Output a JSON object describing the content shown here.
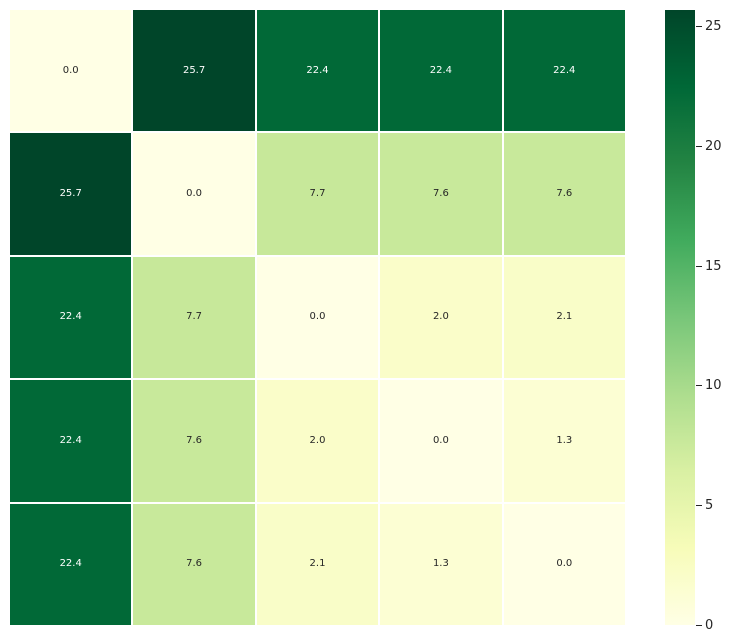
{
  "chart_data": {
    "type": "heatmap",
    "title": "",
    "xlabel": "",
    "ylabel": "",
    "rows": 5,
    "cols": 5,
    "matrix": [
      [
        0.0,
        25.7,
        22.4,
        22.4,
        22.4
      ],
      [
        25.7,
        0.0,
        7.7,
        7.6,
        7.6
      ],
      [
        22.4,
        7.7,
        0.0,
        2.0,
        2.1
      ],
      [
        22.4,
        7.6,
        2.0,
        0.0,
        1.3
      ],
      [
        22.4,
        7.6,
        2.1,
        1.3,
        0.0
      ]
    ],
    "value_format_decimals": 1,
    "vmin": 0,
    "vmax": 25.7,
    "annotations": true,
    "grid_line_color": "#ffffff",
    "colormap": {
      "name": "YlGn",
      "stops": [
        {
          "pos": 0.0,
          "color": "#ffffe5"
        },
        {
          "pos": 0.125,
          "color": "#f7fcb9"
        },
        {
          "pos": 0.25,
          "color": "#d9f0a3"
        },
        {
          "pos": 0.375,
          "color": "#addd8e"
        },
        {
          "pos": 0.5,
          "color": "#78c679"
        },
        {
          "pos": 0.625,
          "color": "#41ab5d"
        },
        {
          "pos": 0.75,
          "color": "#238443"
        },
        {
          "pos": 0.875,
          "color": "#006837"
        },
        {
          "pos": 1.0,
          "color": "#004529"
        }
      ]
    },
    "cell_styles": {
      "0.0": {
        "bg": "#ffffe5",
        "text": "#262626"
      },
      "1.3": {
        "bg": "#fcfed3",
        "text": "#262626"
      },
      "2.0": {
        "bg": "#fafdc9",
        "text": "#262626"
      },
      "2.1": {
        "bg": "#f9fdc8",
        "text": "#262626"
      },
      "7.6": {
        "bg": "#c8e99b",
        "text": "#262626"
      },
      "7.7": {
        "bg": "#c7e89a",
        "text": "#262626"
      },
      "22.4": {
        "bg": "#016937",
        "text": "#ffffff"
      },
      "25.7": {
        "bg": "#004529",
        "text": "#ffffff"
      }
    },
    "colorbar": {
      "position": "right",
      "ticks": [
        0,
        5,
        10,
        15,
        20,
        25
      ],
      "tick_color": "#262626"
    },
    "legend": null,
    "grid": false,
    "axis_tick_labels": {
      "x": [],
      "y": []
    }
  }
}
